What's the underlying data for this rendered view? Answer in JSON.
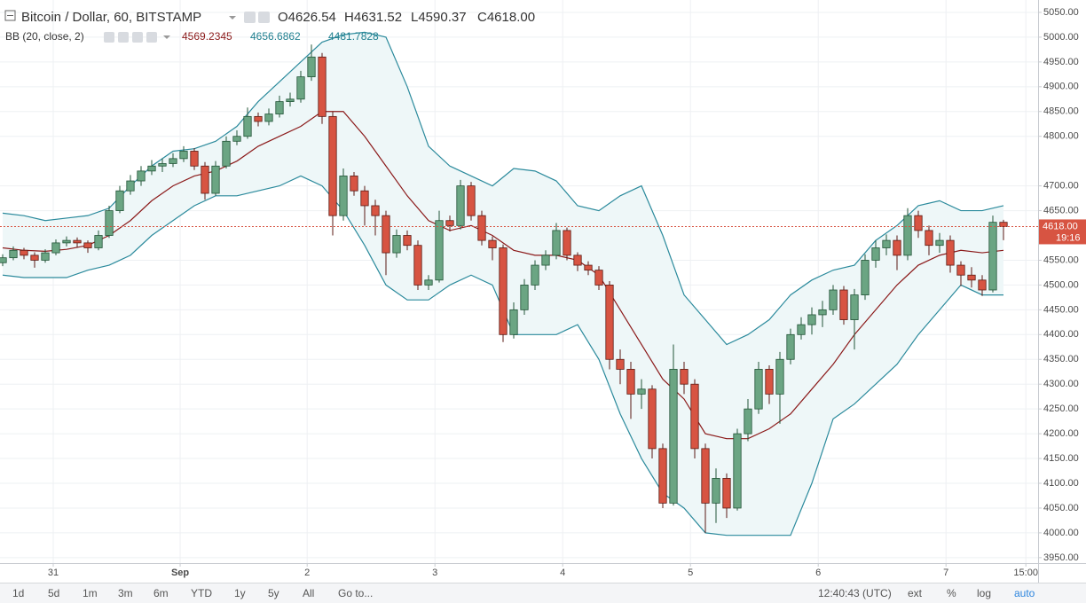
{
  "chart_data": {
    "type": "candlestick",
    "title": "Bitcoin / Dollar, 60, BITSTAMP",
    "ohlc_header": [
      "O4626.54",
      "H4631.52",
      "L4590.37",
      "C4618.00"
    ],
    "up_color": "#6ba583",
    "up_border": "#225437",
    "down_color": "#d75442",
    "down_border": "#5b1a13",
    "open": [
      4545,
      4555,
      4570,
      4560,
      4550,
      4565,
      4585,
      4590,
      4585,
      4575,
      4600,
      4650,
      4690,
      4710,
      4730,
      4740,
      4745,
      4755,
      4770,
      4740,
      4685,
      4740,
      4790,
      4800,
      4840,
      4830,
      4845,
      4870,
      4875,
      4920,
      4960,
      4840,
      4640,
      4720,
      4690,
      4660,
      4640,
      4565,
      4600,
      4580,
      4500,
      4510,
      4630,
      4620,
      4700,
      4640,
      4590,
      4575,
      4400,
      4450,
      4500,
      4540,
      4560,
      4610,
      4560,
      4540,
      4530,
      4500,
      4350,
      4330,
      4280,
      4290,
      4170,
      4060,
      4330,
      4300,
      4170,
      4060,
      4110,
      4050,
      4200,
      4250,
      4330,
      4280,
      4350,
      4400,
      4420,
      4440,
      4450,
      4490,
      4430,
      4480,
      4550,
      4575,
      4590,
      4560,
      4640,
      4610,
      4580,
      4590,
      4540,
      4520,
      4510,
      4490,
      4626.54
    ],
    "high": [
      4562,
      4578,
      4575,
      4566,
      4572,
      4592,
      4598,
      4596,
      4590,
      4610,
      4660,
      4700,
      4722,
      4740,
      4752,
      4755,
      4766,
      4780,
      4776,
      4748,
      4750,
      4800,
      4812,
      4858,
      4848,
      4856,
      4882,
      4888,
      4932,
      4985,
      4968,
      4850,
      4735,
      4728,
      4700,
      4672,
      4650,
      4612,
      4610,
      4590,
      4520,
      4650,
      4640,
      4712,
      4708,
      4650,
      4598,
      4582,
      4465,
      4512,
      4550,
      4570,
      4625,
      4616,
      4566,
      4548,
      4538,
      4508,
      4370,
      4345,
      4310,
      4298,
      4180,
      4380,
      4345,
      4310,
      4180,
      4130,
      4120,
      4210,
      4270,
      4345,
      4338,
      4365,
      4412,
      4435,
      4455,
      4468,
      4500,
      4498,
      4492,
      4562,
      4590,
      4602,
      4600,
      4655,
      4650,
      4620,
      4605,
      4600,
      4548,
      4536,
      4520,
      4640,
      4631.52
    ],
    "low": [
      4538,
      4550,
      4552,
      4535,
      4545,
      4560,
      4578,
      4575,
      4565,
      4570,
      4595,
      4645,
      4682,
      4700,
      4722,
      4728,
      4738,
      4748,
      4732,
      4672,
      4680,
      4735,
      4782,
      4795,
      4820,
      4822,
      4838,
      4860,
      4868,
      4912,
      4825,
      4600,
      4630,
      4680,
      4620,
      4600,
      4520,
      4555,
      4570,
      4490,
      4490,
      4505,
      4608,
      4612,
      4630,
      4580,
      4550,
      4385,
      4392,
      4440,
      4490,
      4530,
      4552,
      4550,
      4528,
      4520,
      4490,
      4330,
      4300,
      4230,
      4250,
      4150,
      4050,
      4055,
      4280,
      4150,
      4000,
      4020,
      4030,
      4045,
      4185,
      4240,
      4260,
      4220,
      4340,
      4390,
      4400,
      4415,
      4440,
      4420,
      4370,
      4470,
      4535,
      4560,
      4530,
      4550,
      4595,
      4560,
      4565,
      4525,
      4498,
      4495,
      4478,
      4485,
      4590.37
    ],
    "close": [
      4555,
      4570,
      4560,
      4550,
      4565,
      4585,
      4590,
      4585,
      4575,
      4600,
      4650,
      4690,
      4710,
      4730,
      4740,
      4745,
      4755,
      4770,
      4740,
      4685,
      4740,
      4790,
      4800,
      4840,
      4830,
      4845,
      4870,
      4875,
      4920,
      4960,
      4840,
      4640,
      4720,
      4690,
      4660,
      4640,
      4565,
      4600,
      4580,
      4500,
      4510,
      4630,
      4620,
      4700,
      4640,
      4590,
      4575,
      4400,
      4450,
      4500,
      4540,
      4560,
      4610,
      4560,
      4540,
      4530,
      4500,
      4350,
      4330,
      4280,
      4290,
      4170,
      4060,
      4330,
      4300,
      4170,
      4060,
      4110,
      4050,
      4200,
      4250,
      4330,
      4280,
      4350,
      4400,
      4420,
      4440,
      4450,
      4490,
      4430,
      4480,
      4550,
      4575,
      4590,
      4560,
      4640,
      4610,
      4580,
      4590,
      4540,
      4520,
      4510,
      4490,
      4626.54,
      4618
    ],
    "bb": {
      "label": "BB (20, close, 2)",
      "legend_values": [
        4569.2345,
        4656.6862,
        4481.7828
      ],
      "basis_color": "#8b1a1a",
      "band_color": "#2b8a9c",
      "fill": "#eef7f8",
      "x": [
        0,
        2,
        4,
        6,
        8,
        10,
        12,
        14,
        16,
        18,
        20,
        22,
        24,
        26,
        28,
        30,
        32,
        34,
        36,
        38,
        40,
        42,
        44,
        46,
        48,
        50,
        52,
        54,
        56,
        58,
        60,
        62,
        64,
        66,
        68,
        70,
        72,
        74,
        76,
        78,
        80,
        82,
        84,
        86,
        88,
        90,
        92,
        94
      ],
      "upper": [
        4645,
        4640,
        4630,
        4635,
        4640,
        4655,
        4700,
        4740,
        4770,
        4775,
        4790,
        4820,
        4870,
        4910,
        4950,
        4990,
        5005,
        5010,
        5000,
        4900,
        4780,
        4740,
        4720,
        4700,
        4735,
        4730,
        4710,
        4660,
        4650,
        4680,
        4700,
        4600,
        4480,
        4430,
        4380,
        4400,
        4430,
        4480,
        4510,
        4530,
        4540,
        4590,
        4620,
        4660,
        4670,
        4650,
        4650,
        4660
      ],
      "basis": [
        4575,
        4570,
        4568,
        4572,
        4580,
        4600,
        4630,
        4670,
        4700,
        4720,
        4730,
        4750,
        4780,
        4800,
        4820,
        4850,
        4850,
        4800,
        4740,
        4680,
        4630,
        4610,
        4620,
        4600,
        4570,
        4560,
        4560,
        4550,
        4520,
        4450,
        4380,
        4310,
        4270,
        4200,
        4190,
        4190,
        4210,
        4240,
        4290,
        4340,
        4400,
        4450,
        4500,
        4540,
        4560,
        4570,
        4565,
        4570
      ],
      "lower": [
        4520,
        4515,
        4515,
        4515,
        4530,
        4540,
        4560,
        4600,
        4630,
        4660,
        4680,
        4680,
        4690,
        4700,
        4720,
        4700,
        4650,
        4580,
        4500,
        4470,
        4470,
        4500,
        4520,
        4500,
        4400,
        4400,
        4400,
        4420,
        4350,
        4240,
        4150,
        4080,
        4050,
        4000,
        3995,
        3995,
        3995,
        3995,
        4100,
        4230,
        4260,
        4300,
        4340,
        4400,
        4450,
        4500,
        4480,
        4480
      ]
    },
    "last_price": {
      "value": 4618,
      "label": "4618.00"
    },
    "countdown": "19:16",
    "ylim": [
      3939,
      5075
    ],
    "yticks": [
      {
        "value": 3950,
        "label": "3950.00"
      },
      {
        "value": 4000,
        "label": "4000.00"
      },
      {
        "value": 4050,
        "label": "4050.00"
      },
      {
        "value": 4100,
        "label": "4100.00"
      },
      {
        "value": 4150,
        "label": "4150.00"
      },
      {
        "value": 4200,
        "label": "4200.00"
      },
      {
        "value": 4250,
        "label": "4250.00"
      },
      {
        "value": 4300,
        "label": "4300.00"
      },
      {
        "value": 4350,
        "label": "4350.00"
      },
      {
        "value": 4400,
        "label": "4400.00"
      },
      {
        "value": 4450,
        "label": "4450.00"
      },
      {
        "value": 4500,
        "label": "4500.00"
      },
      {
        "value": 4550,
        "label": "4550.00"
      },
      {
        "value": 4650,
        "label": "4650.00"
      },
      {
        "value": 4700,
        "label": "4700.00"
      },
      {
        "value": 4800,
        "label": "4800.00"
      },
      {
        "value": 4850,
        "label": "4850.00"
      },
      {
        "value": 4900,
        "label": "4900.00"
      },
      {
        "value": 4950,
        "label": "4950.00"
      },
      {
        "value": 5000,
        "label": "5000.00"
      },
      {
        "value": 5050,
        "label": "5050.00"
      }
    ],
    "xlim": [
      -0.25,
      97.25
    ],
    "xticks": [
      {
        "value": 4.75,
        "label": "31"
      },
      {
        "value": 16.67,
        "label": "Sep"
      },
      {
        "value": 28.6,
        "label": "2"
      },
      {
        "value": 40.6,
        "label": "3"
      },
      {
        "value": 52.6,
        "label": "4"
      },
      {
        "value": 64.6,
        "label": "5"
      },
      {
        "value": 76.6,
        "label": "6"
      },
      {
        "value": 88.6,
        "label": "7"
      },
      {
        "value": 96.1,
        "label": "15:00"
      }
    ],
    "grid": true
  },
  "toolbar": {
    "ranges": [
      "1d",
      "5d",
      "1m",
      "3m",
      "6m",
      "YTD",
      "1y",
      "5y",
      "All"
    ],
    "goto": "Go to...",
    "clock": "12:40:43 (UTC)",
    "options": [
      "ext",
      "%",
      "log",
      "auto"
    ],
    "active_option": 3
  }
}
